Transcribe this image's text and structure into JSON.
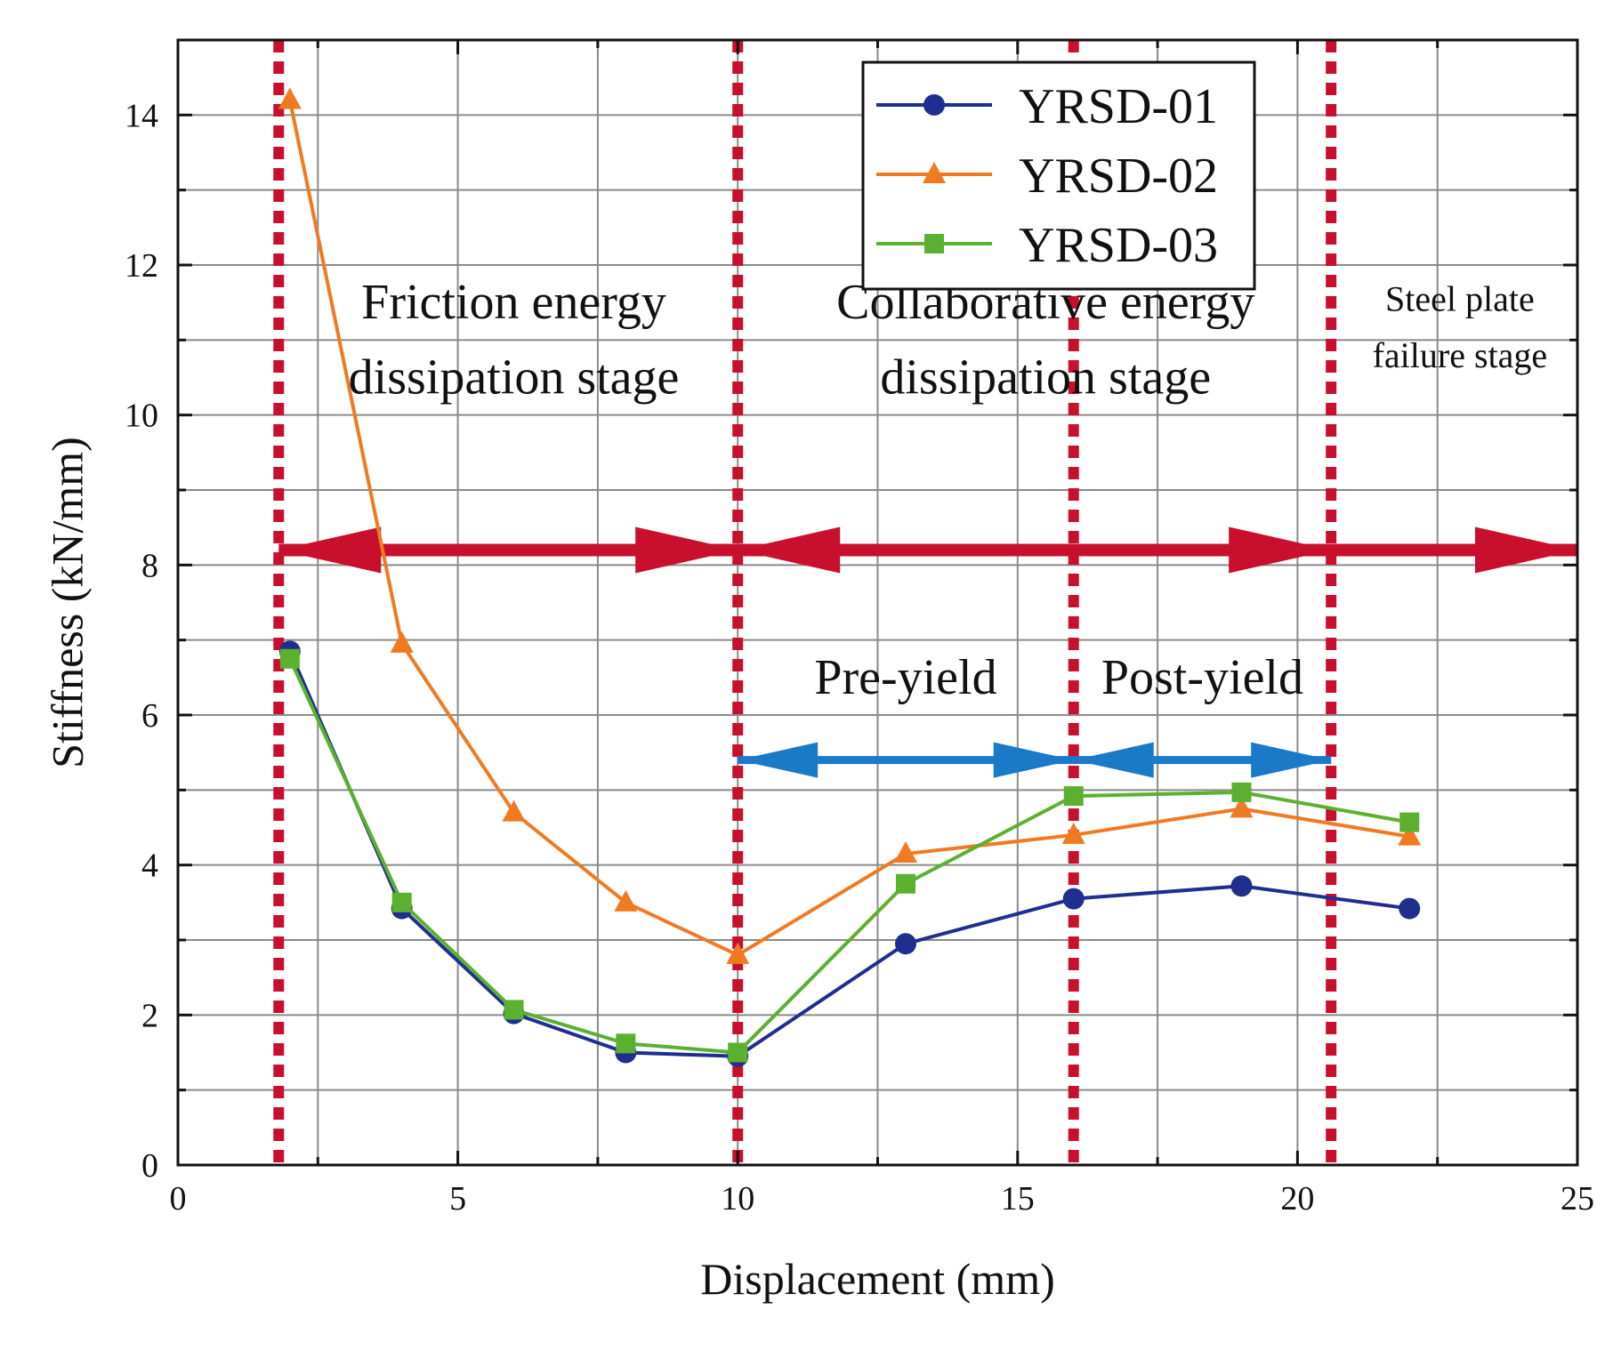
{
  "chart_data": {
    "type": "line",
    "title": "",
    "xlabel": "Displacement (mm)",
    "ylabel": "Stiffness (kN/mm)",
    "xlim": [
      0,
      25
    ],
    "ylim": [
      0,
      15
    ],
    "xticks": [
      0,
      5,
      10,
      15,
      20,
      25
    ],
    "yticks": [
      0,
      2,
      4,
      6,
      8,
      10,
      12,
      14
    ],
    "grid": true,
    "legend_position": "top-right",
    "series": [
      {
        "name": "YRSD-01",
        "color": "#1f2e8f",
        "marker": "circle",
        "x": [
          2,
          4,
          6,
          8,
          10,
          13,
          16,
          19,
          22
        ],
        "y": [
          6.85,
          3.42,
          2.02,
          1.5,
          1.45,
          2.95,
          3.55,
          3.72,
          3.42
        ]
      },
      {
        "name": "YRSD-02",
        "color": "#f07a22",
        "marker": "triangle",
        "x": [
          2,
          4,
          6,
          8,
          10,
          13,
          16,
          19,
          22
        ],
        "y": [
          14.2,
          6.95,
          4.7,
          3.5,
          2.8,
          4.15,
          4.4,
          4.75,
          4.38
        ]
      },
      {
        "name": "YRSD-03",
        "color": "#5cb030",
        "marker": "square",
        "x": [
          2,
          4,
          6,
          8,
          10,
          13,
          16,
          19,
          22
        ],
        "y": [
          6.75,
          3.5,
          2.07,
          1.62,
          1.5,
          3.75,
          4.92,
          4.97,
          4.57
        ]
      }
    ],
    "stage_boundaries": [
      1.8,
      10,
      16,
      20.6
    ],
    "annotations": {
      "stages": [
        {
          "lines": [
            "Friction energy",
            "dissipation stage"
          ],
          "x": 6,
          "y": [
            11.5,
            10.5
          ],
          "size": "large"
        },
        {
          "lines": [
            "Collaborative energy",
            "dissipation stage"
          ],
          "x": 15.5,
          "y": [
            11.5,
            10.5
          ],
          "size": "large"
        },
        {
          "lines": [
            "Steel plate",
            "failure stage"
          ],
          "x": 22.9,
          "y": [
            11.6,
            10.85
          ],
          "size": "small"
        }
      ],
      "sub_stages": [
        {
          "text": "Pre-yield",
          "x": 13,
          "y": 6.5
        },
        {
          "text": "Post-yield",
          "x": 18.3,
          "y": 6.5
        }
      ],
      "red_arrow_y": 8.2,
      "red_arrow_range": [
        1.8,
        25
      ],
      "blue_arrow_y": 5.4,
      "blue_arrow_range": [
        10,
        20.6
      ]
    },
    "colors": {
      "stage_line": "#c8102e",
      "stage_arrow": "#c8102e",
      "yield_arrow": "#1a7ac8",
      "grid": "#8a8a8a",
      "axis": "#111111"
    }
  }
}
